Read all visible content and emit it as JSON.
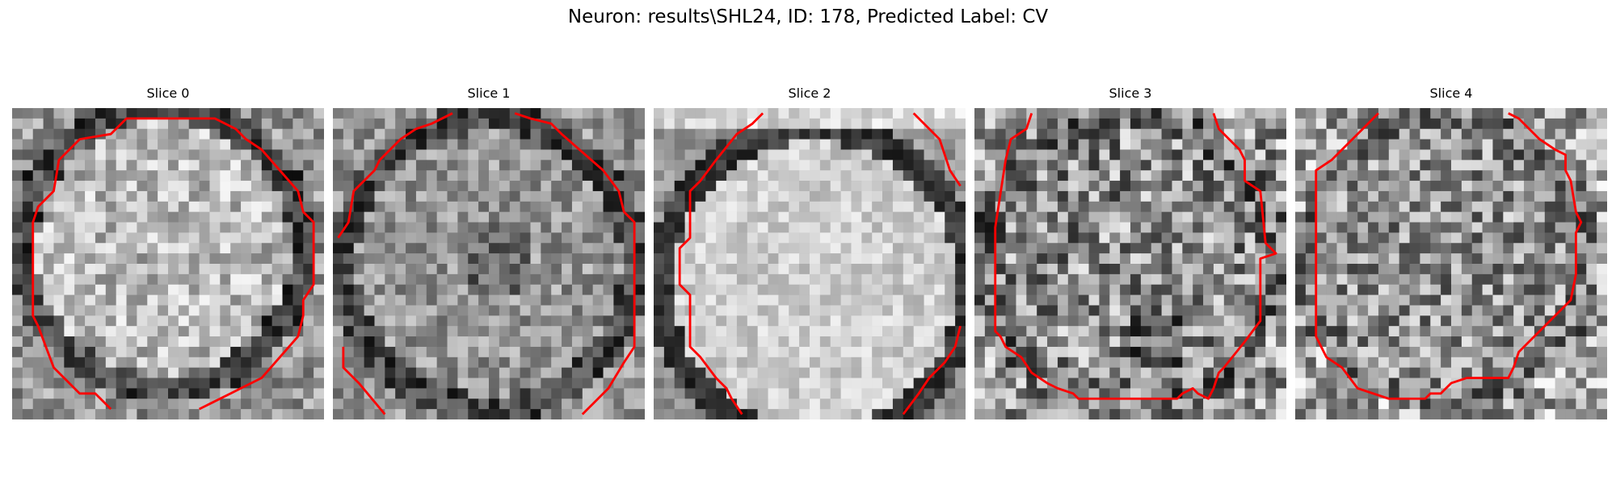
{
  "figure": {
    "title": "Neuron: results\\SHL24, ID: 178, Predicted Label: CV"
  },
  "slices": [
    {
      "title": "Slice 0"
    },
    {
      "title": "Slice 1"
    },
    {
      "title": "Slice 2"
    },
    {
      "title": "Slice 3"
    },
    {
      "title": "Slice 4"
    }
  ],
  "colors": {
    "contour": "#ff0000",
    "background": "#ffffff"
  }
}
